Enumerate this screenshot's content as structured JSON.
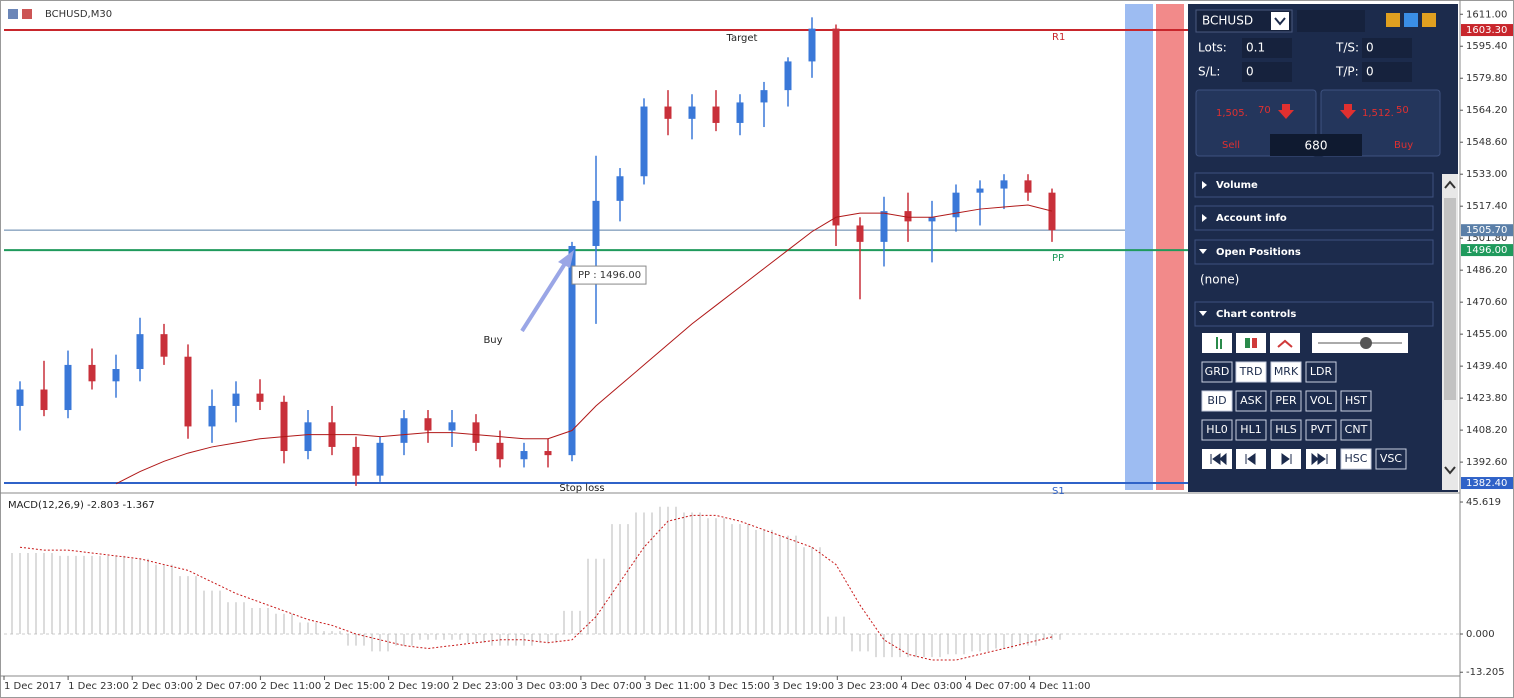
{
  "window_title": "BCHUSD,M30",
  "chart_data": {
    "type": "candlestick",
    "candles": [
      [
        1420,
        1432,
        1408,
        1428
      ],
      [
        1428,
        1442,
        1415,
        1418
      ],
      [
        1418,
        1447,
        1414,
        1440
      ],
      [
        1440,
        1448,
        1428,
        1432
      ],
      [
        1432,
        1445,
        1424,
        1438
      ],
      [
        1438,
        1463,
        1432,
        1455
      ],
      [
        1455,
        1460,
        1440,
        1444
      ],
      [
        1444,
        1450,
        1404,
        1410
      ],
      [
        1410,
        1428,
        1402,
        1420
      ],
      [
        1420,
        1432,
        1412,
        1426
      ],
      [
        1426,
        1433,
        1418,
        1422
      ],
      [
        1422,
        1425,
        1392,
        1398
      ],
      [
        1398,
        1418,
        1394,
        1412
      ],
      [
        1412,
        1420,
        1396,
        1400
      ],
      [
        1400,
        1405,
        1381,
        1386
      ],
      [
        1386,
        1405,
        1383,
        1402
      ],
      [
        1402,
        1418,
        1396,
        1414
      ],
      [
        1414,
        1418,
        1402,
        1408
      ],
      [
        1408,
        1418,
        1400,
        1412
      ],
      [
        1412,
        1416,
        1398,
        1402
      ],
      [
        1402,
        1408,
        1390,
        1394
      ],
      [
        1394,
        1402,
        1390,
        1398
      ],
      [
        1398,
        1404,
        1390,
        1396
      ],
      [
        1396,
        1500,
        1393,
        1498
      ],
      [
        1498,
        1542,
        1460,
        1520
      ],
      [
        1520,
        1536,
        1510,
        1532
      ],
      [
        1532,
        1570,
        1528,
        1566
      ],
      [
        1566,
        1574,
        1552,
        1560
      ],
      [
        1560,
        1572,
        1550,
        1566
      ],
      [
        1566,
        1574,
        1554,
        1558
      ],
      [
        1558,
        1572,
        1552,
        1568
      ],
      [
        1568,
        1578,
        1556,
        1574
      ],
      [
        1574,
        1590,
        1566,
        1588
      ],
      [
        1588,
        1609.5,
        1580,
        1604
      ],
      [
        1604,
        1606,
        1498,
        1508
      ],
      [
        1508,
        1512,
        1472,
        1500
      ],
      [
        1500,
        1522,
        1488,
        1515
      ],
      [
        1515,
        1524,
        1500,
        1510
      ],
      [
        1510,
        1520,
        1490,
        1512
      ],
      [
        1512,
        1528,
        1505,
        1524
      ],
      [
        1524,
        1530,
        1508,
        1526
      ],
      [
        1526,
        1533,
        1516,
        1530
      ],
      [
        1530,
        1533,
        1520,
        1524
      ],
      [
        1524,
        1526,
        1500,
        1505.7
      ]
    ],
    "ma": [
      null,
      null,
      null,
      null,
      1382,
      1388,
      1393,
      1397,
      1400,
      1402,
      1404,
      1405,
      1406,
      1406,
      1406,
      1405,
      1406,
      1407,
      1407,
      1406,
      1405,
      1404,
      1404,
      1408,
      1420,
      1430,
      1440,
      1450,
      1460,
      1469,
      1478,
      1487,
      1496,
      1505,
      1512,
      1514,
      1514,
      1512,
      1512,
      1514,
      1516,
      1517,
      1518,
      1515
    ],
    "ylim": [
      1379,
      1616
    ],
    "yticks": [
      {
        "value": 1611,
        "label": "1611.00"
      },
      {
        "value": 1595.4,
        "label": "1595.40"
      },
      {
        "value": 1579.8,
        "label": "1579.80"
      },
      {
        "value": 1564.2,
        "label": "1564.20"
      },
      {
        "value": 1548.6,
        "label": "1548.60"
      },
      {
        "value": 1533,
        "label": "1533.00"
      },
      {
        "value": 1517.4,
        "label": "1517.40"
      },
      {
        "value": 1501.8,
        "label": "1501.80"
      },
      {
        "value": 1486.2,
        "label": "1486.20"
      },
      {
        "value": 1470.6,
        "label": "1470.60"
      },
      {
        "value": 1455,
        "label": "1455.00"
      },
      {
        "value": 1439.4,
        "label": "1439.40"
      },
      {
        "value": 1423.8,
        "label": "1423.80"
      },
      {
        "value": 1408.2,
        "label": "1408.20"
      },
      {
        "value": 1392.6,
        "label": "1392.60"
      }
    ],
    "levels": [
      {
        "name": "R1",
        "value": 1603.3,
        "label": "1603.30",
        "color": "#c8262c"
      },
      {
        "name": "PP",
        "value": 1496,
        "label": "1496.00",
        "color": "#1f9a5c"
      },
      {
        "name": "S1",
        "value": 1382.4,
        "label": "1382.40",
        "color": "#2f62c8"
      }
    ],
    "bid": {
      "value": 1505.7,
      "label": "1505.70",
      "color": "#5a7fa8"
    },
    "pp_box": "PP : 1496.00",
    "annotations": {
      "target": "Target",
      "buy": "Buy",
      "stop_loss": "Stop loss"
    },
    "x_labels": [
      "1 Dec 2017",
      "1 Dec 23:00",
      "2 Dec 03:00",
      "2 Dec 07:00",
      "2 Dec 11:00",
      "2 Dec 15:00",
      "2 Dec 19:00",
      "2 Dec 23:00",
      "3 Dec 03:00",
      "3 Dec 07:00",
      "3 Dec 11:00",
      "3 Dec 15:00",
      "3 Dec 19:00",
      "3 Dec 23:00",
      "4 Dec 03:00",
      "4 Dec 07:00",
      "4 Dec 11:00"
    ],
    "macd": {
      "title": "MACD(12,26,9) -2.803 -1.367",
      "histogram": [
        28,
        28,
        27,
        27,
        27,
        26,
        24,
        20,
        15,
        11,
        9,
        7,
        4,
        1,
        -4,
        -6,
        -4,
        -2,
        -2,
        -3,
        -4,
        -4,
        -3,
        8,
        26,
        38,
        42,
        44,
        42,
        40,
        38,
        36,
        34,
        30,
        6,
        -6,
        -8,
        -8,
        -8,
        -7,
        -6,
        -5,
        -4,
        -2
      ],
      "signal": [
        30,
        29,
        29,
        28,
        27,
        26,
        24,
        22,
        18,
        14,
        11,
        8,
        5,
        3,
        0,
        -2,
        -4,
        -5,
        -4,
        -3,
        -2,
        -2,
        -3,
        -2,
        6,
        18,
        30,
        39,
        41,
        41,
        39,
        36,
        33,
        30,
        24,
        10,
        -2,
        -7,
        -9,
        -9,
        -7,
        -5,
        -3,
        -1
      ],
      "ylim": [
        -15.2,
        47.7
      ],
      "yticks": [
        {
          "value": 45.619,
          "label": "45.619"
        },
        {
          "value": 0,
          "label": "0.000"
        },
        {
          "value": -13.205,
          "label": "-13.205"
        }
      ]
    }
  },
  "panel": {
    "symbol": "BCHUSD",
    "lots_label": "Lots:",
    "lots": "0.1",
    "ts_label": "T/S:",
    "ts": "0",
    "sl_label": "S/L:",
    "sl": "0",
    "tp_label": "T/P:",
    "tp": "0",
    "sell": {
      "main": "1,505.",
      "pips": "70",
      "label": "Sell"
    },
    "buy": {
      "main": "1,512.",
      "pips": "50",
      "label": "Buy"
    },
    "spread": "680",
    "sections": [
      "Volume",
      "Account info",
      "Open Positions",
      "Chart controls"
    ],
    "positions": "(none)",
    "buttons": [
      [
        "GRD",
        "TRD",
        "MRK",
        "LDR"
      ],
      [
        "BID",
        "ASK",
        "PER",
        "VOL",
        "HST"
      ],
      [
        "HL0",
        "HL1",
        "HLS",
        "PVT",
        "CNT"
      ],
      [
        "HSC",
        "VSC"
      ]
    ]
  }
}
